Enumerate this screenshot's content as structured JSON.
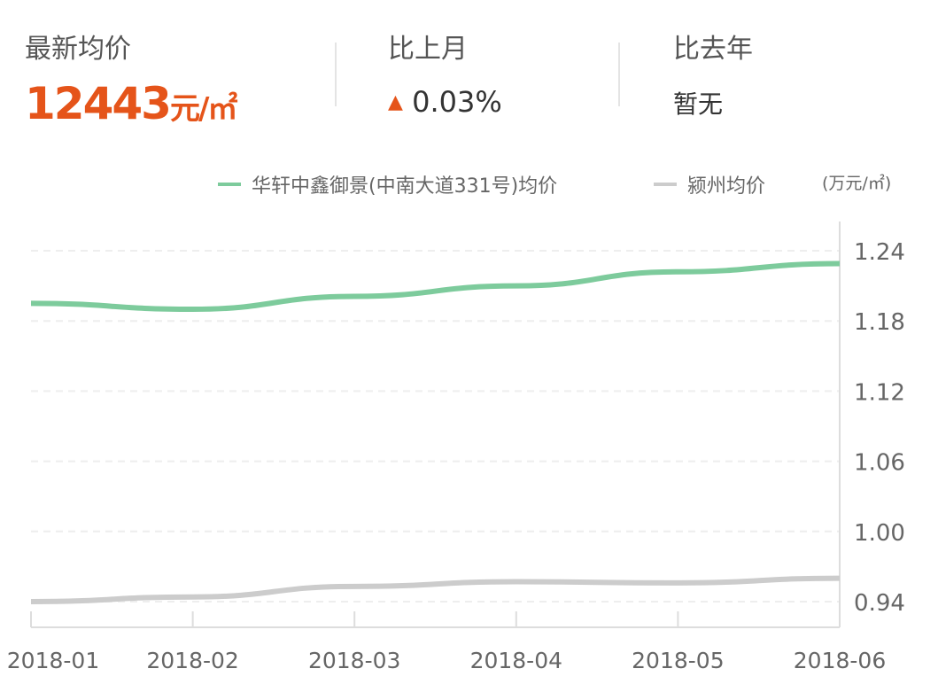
{
  "stats": {
    "latest": {
      "label": "最新均价",
      "value": "12443",
      "unit": "元/㎡"
    },
    "mom": {
      "label": "比上月",
      "value": "0.03%",
      "direction": "up",
      "icon": "triangle-up-icon"
    },
    "yoy": {
      "label": "比去年",
      "value": "暂无"
    }
  },
  "colors": {
    "accent": "#e5541a",
    "green": "#7dcb9c",
    "gray": "#cccccc"
  },
  "chart_data": {
    "type": "line",
    "unit_label": "(万元/㎡)",
    "categories": [
      "2018-01",
      "2018-02",
      "2018-03",
      "2018-04",
      "2018-05",
      "2018-06"
    ],
    "yticks": [
      "0.94",
      "1.00",
      "1.06",
      "1.12",
      "1.18",
      "1.24"
    ],
    "ylim": [
      0.94,
      1.24
    ],
    "grid": true,
    "legend_position": "top-right",
    "series": [
      {
        "name": "华轩中鑫御景(中南大道331号)均价",
        "color": "#7dcb9c",
        "values": [
          1.195,
          1.19,
          1.201,
          1.21,
          1.222,
          1.229
        ]
      },
      {
        "name": "颍州均价",
        "color": "#cccccc",
        "values": [
          0.94,
          0.944,
          0.953,
          0.957,
          0.956,
          0.96
        ]
      }
    ]
  }
}
